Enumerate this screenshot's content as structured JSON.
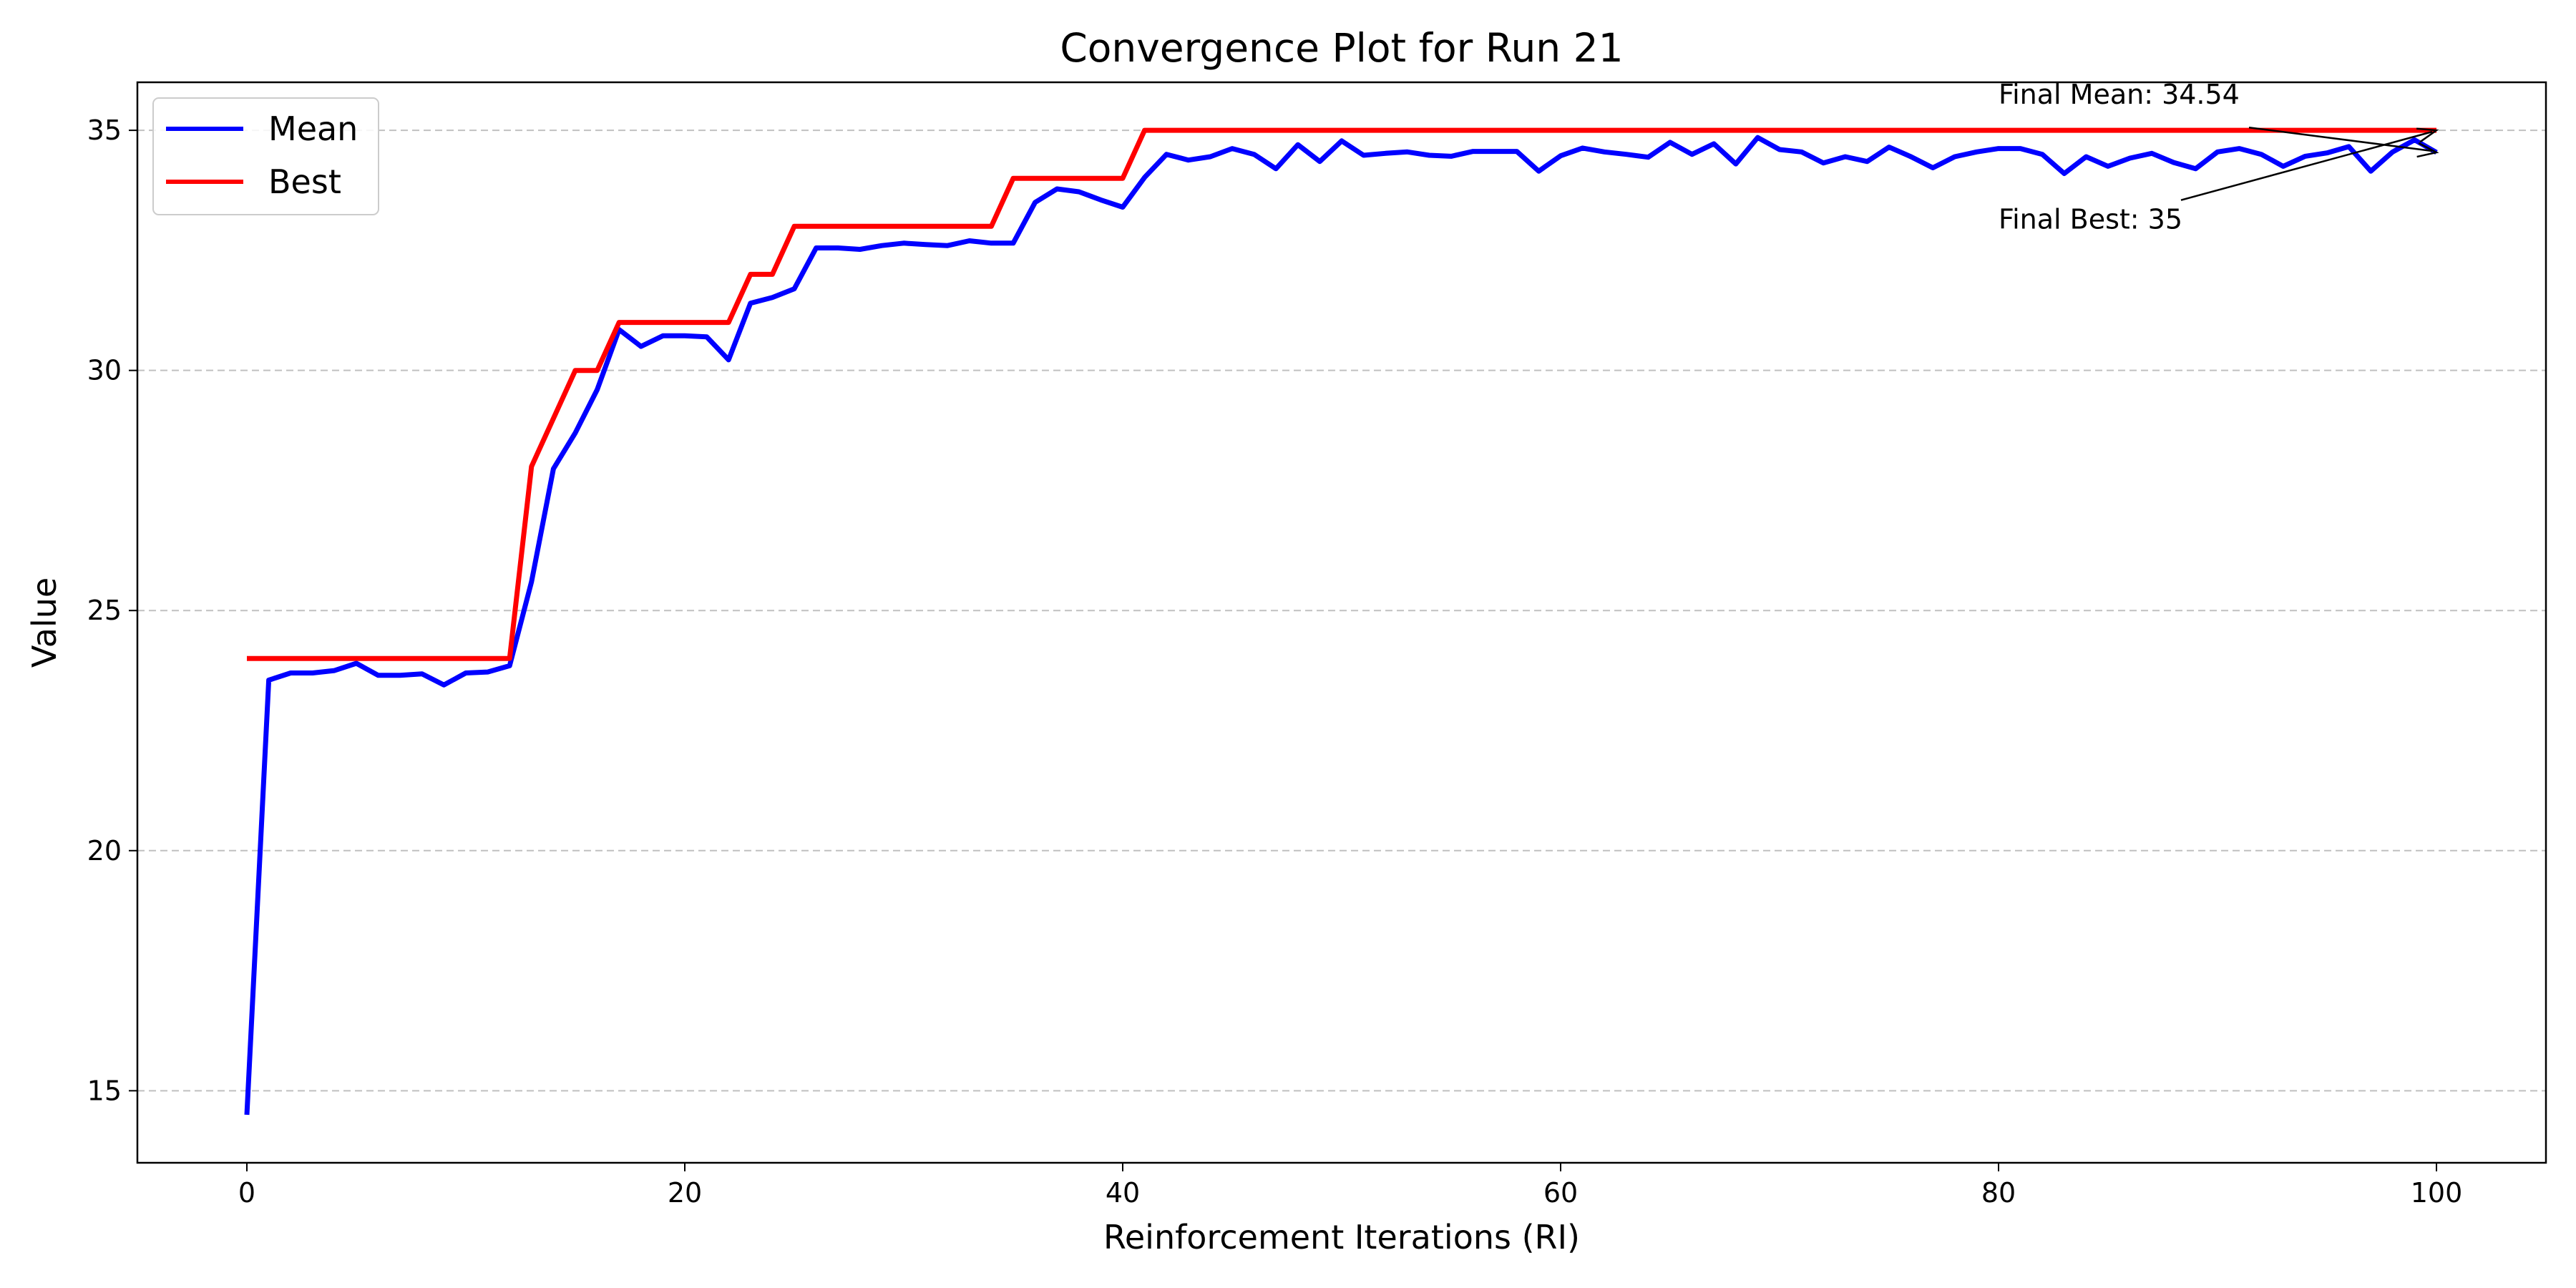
{
  "chart_data": {
    "type": "line",
    "title": "Convergence Plot for Run 21",
    "xlabel": "Reinforcement Iterations (RI)",
    "ylabel": "Value",
    "xlim": [
      -5,
      105
    ],
    "ylim": [
      13.5,
      36
    ],
    "xticks": [
      0,
      20,
      40,
      60,
      80,
      100
    ],
    "yticks": [
      15,
      20,
      25,
      30,
      35
    ],
    "grid": "y-dashed",
    "legend": "top-left",
    "x": [
      0,
      1,
      2,
      3,
      4,
      5,
      6,
      7,
      8,
      9,
      10,
      11,
      12,
      13,
      14,
      15,
      16,
      17,
      18,
      19,
      20,
      21,
      22,
      23,
      24,
      25,
      26,
      27,
      28,
      29,
      30,
      31,
      32,
      33,
      34,
      35,
      36,
      37,
      38,
      39,
      40,
      41,
      42,
      43,
      44,
      45,
      46,
      47,
      48,
      49,
      50,
      51,
      52,
      53,
      54,
      55,
      56,
      57,
      58,
      59,
      60,
      61,
      62,
      63,
      64,
      65,
      66,
      67,
      68,
      69,
      70,
      71,
      72,
      73,
      74,
      75,
      76,
      77,
      78,
      79,
      80,
      81,
      82,
      83,
      84,
      85,
      86,
      87,
      88,
      89,
      90,
      91,
      92,
      93,
      94,
      95,
      96,
      97,
      98,
      99,
      100
    ],
    "series": [
      {
        "name": "Mean",
        "color": "#0000ff",
        "values": [
          14.5,
          23.55,
          23.7,
          23.7,
          23.75,
          23.9,
          23.65,
          23.65,
          23.68,
          23.45,
          23.7,
          23.72,
          23.85,
          25.6,
          27.95,
          28.7,
          29.6,
          30.85,
          30.5,
          30.72,
          30.72,
          30.7,
          30.22,
          31.4,
          31.52,
          31.7,
          32.55,
          32.55,
          32.52,
          32.6,
          32.65,
          32.62,
          32.6,
          32.7,
          32.65,
          32.65,
          33.5,
          33.78,
          33.72,
          33.55,
          33.4,
          34.02,
          34.5,
          34.38,
          34.45,
          34.62,
          34.5,
          34.2,
          34.7,
          34.35,
          34.78,
          34.48,
          34.52,
          34.55,
          34.48,
          34.46,
          34.56,
          34.56,
          34.56,
          34.15,
          34.47,
          34.63,
          34.55,
          34.5,
          34.44,
          34.75,
          34.5,
          34.72,
          34.3,
          34.85,
          34.6,
          34.55,
          34.32,
          34.45,
          34.35,
          34.65,
          34.45,
          34.22,
          34.45,
          34.55,
          34.62,
          34.62,
          34.5,
          34.1,
          34.45,
          34.25,
          34.42,
          34.52,
          34.33,
          34.2,
          34.55,
          34.62,
          34.5,
          34.25,
          34.46,
          34.53,
          34.66,
          34.15,
          34.55,
          34.8,
          34.54
        ]
      },
      {
        "name": "Best",
        "color": "#ff0000",
        "values": [
          24,
          24,
          24,
          24,
          24,
          24,
          24,
          24,
          24,
          24,
          24,
          24,
          24,
          28,
          29,
          30,
          30,
          31,
          31,
          31,
          31,
          31,
          31,
          32,
          32,
          33,
          33,
          33,
          33,
          33,
          33,
          33,
          33,
          33,
          33,
          34,
          34,
          34,
          34,
          34,
          34,
          35,
          35,
          35,
          35,
          35,
          35,
          35,
          35,
          35,
          35,
          35,
          35,
          35,
          35,
          35,
          35,
          35,
          35,
          35,
          35,
          35,
          35,
          35,
          35,
          35,
          35,
          35,
          35,
          35,
          35,
          35,
          35,
          35,
          35,
          35,
          35,
          35,
          35,
          35,
          35,
          35,
          35,
          35,
          35,
          35,
          35,
          35,
          35,
          35,
          35,
          35,
          35,
          35,
          35,
          35,
          35,
          35,
          35,
          35,
          35
        ]
      }
    ],
    "annotations": [
      {
        "text": "Final Mean: 34.54",
        "text_x": 80,
        "text_y": 35.55,
        "point_x": 100,
        "point_y": 34.54
      },
      {
        "text": "Final Best: 35",
        "text_x": 80,
        "text_y": 32.95,
        "point_x": 100,
        "point_y": 35
      }
    ]
  }
}
